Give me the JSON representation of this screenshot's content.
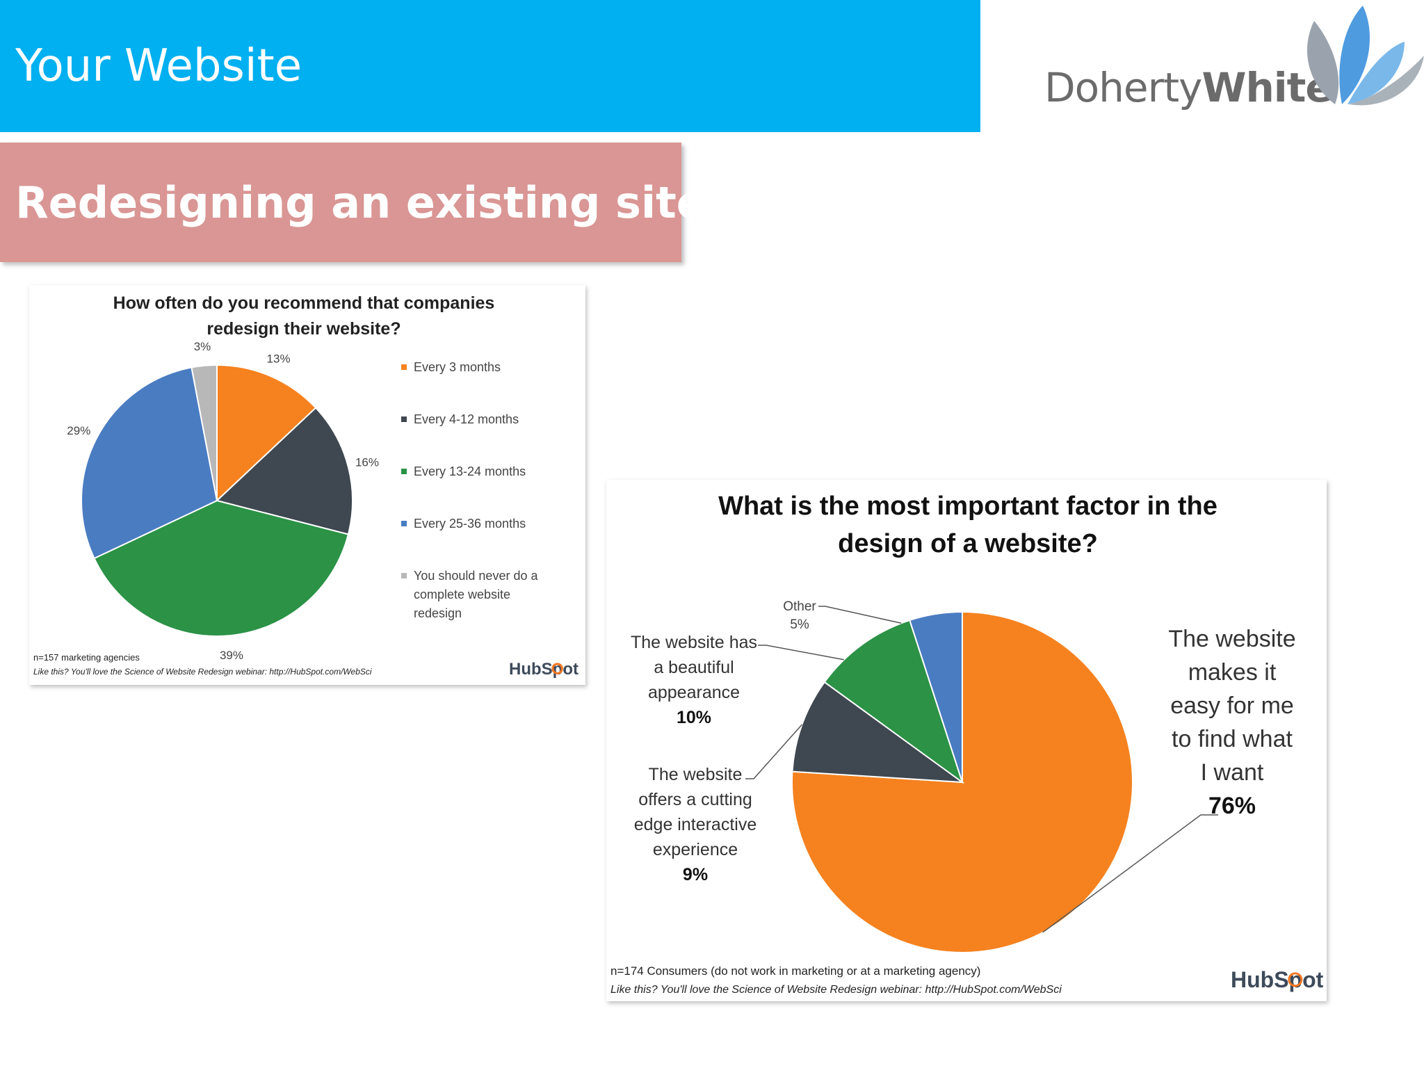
{
  "header": {
    "title": "Your Website"
  },
  "logo": {
    "text_light": "Doherty",
    "text_bold": "White"
  },
  "subtitle": {
    "text": "Redesigning an existing site"
  },
  "chart_data": [
    {
      "type": "pie",
      "title_lines": [
        "How often do you recommend that companies",
        "redesign their website?"
      ],
      "categories": [
        "Every 3 months",
        "Every 4-12 months",
        "Every 13-24 months",
        "Every 25-36 months",
        "You should never do a complete website redesign"
      ],
      "legend_lines": [
        [
          "Every 3 months"
        ],
        [
          "Every 4-12 months"
        ],
        [
          "Every 13-24 months"
        ],
        [
          "Every 25-36 months"
        ],
        [
          "You should never do a",
          "complete website",
          "redesign"
        ]
      ],
      "values": [
        13,
        16,
        39,
        29,
        3
      ],
      "value_labels": [
        "13%",
        "16%",
        "39%",
        "29%",
        "3%"
      ],
      "colors": [
        "#f5821f",
        "#3f4750",
        "#2b9246",
        "#4a7cc2",
        "#b8b8b8"
      ],
      "legend": "right",
      "footnote": "n=157 marketing agencies",
      "source": "Like this? You'll love the Science of Website Redesign webinar: http://HubSpot.com/WebSci",
      "brand": "HubSpot"
    },
    {
      "type": "pie",
      "title_lines": [
        "What is the most important factor in the",
        "design of a website?"
      ],
      "categories": [
        "The website makes it easy for me to find what I want",
        "The website offers a cutting edge interactive experience",
        "The website has a beautiful appearance",
        "Other"
      ],
      "label_lines": [
        [
          "The website",
          "makes it",
          "easy for me",
          "to find what",
          "I want"
        ],
        [
          "The website",
          "offers a cutting",
          "edge interactive",
          "experience"
        ],
        [
          "The website has",
          "a beautiful",
          "appearance"
        ],
        [
          "Other"
        ]
      ],
      "values": [
        76,
        9,
        10,
        5
      ],
      "value_labels": [
        "76%",
        "9%",
        "10%",
        "5%"
      ],
      "colors": [
        "#f5821f",
        "#3f4750",
        "#2b9246",
        "#4a7cc2"
      ],
      "legend": "none",
      "footnote": "n=174 Consumers (do not work in marketing or at a marketing agency)",
      "source": "Like this? You'll love the Science of Website Redesign webinar: http://HubSpot.com/WebSci",
      "brand": "HubSpot"
    }
  ]
}
